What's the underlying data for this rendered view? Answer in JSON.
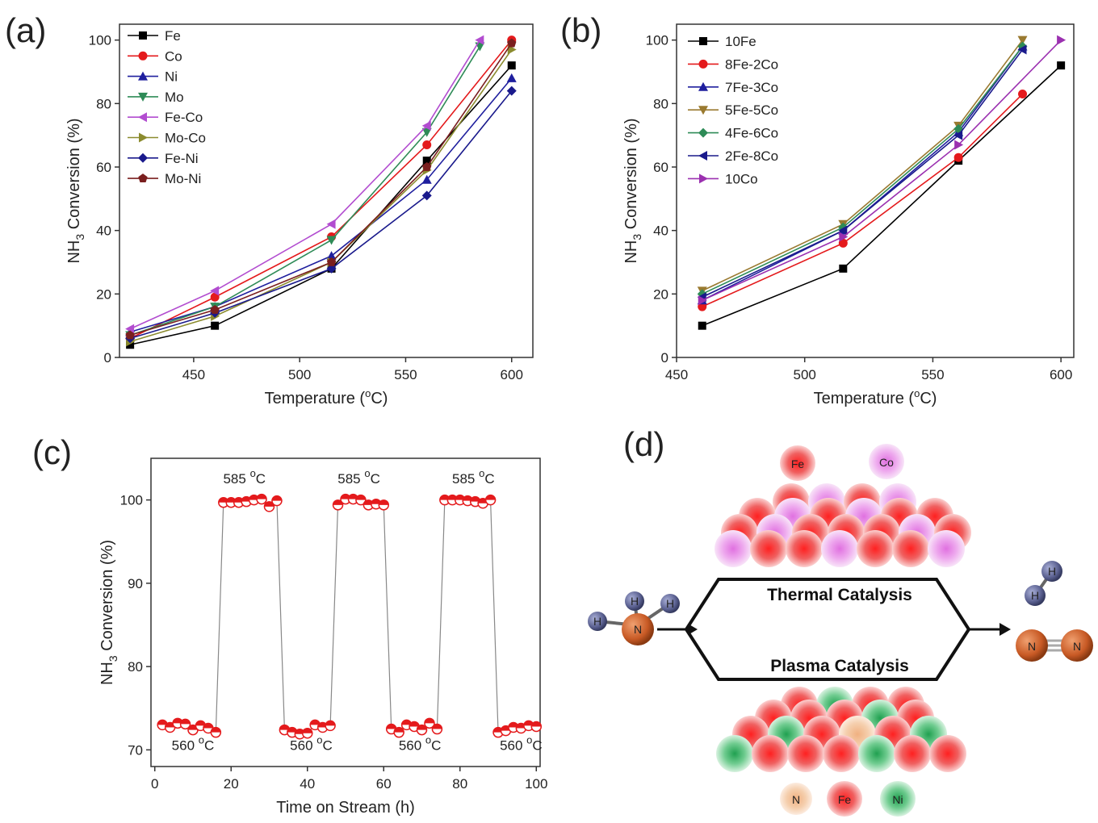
{
  "panel_labels": {
    "a": "(a)",
    "b": "(b)",
    "c": "(c)",
    "d": "(d)"
  },
  "chart_data": [
    {
      "id": "a",
      "type": "line",
      "xlabel": "Temperature (°C)",
      "ylabel": "NH3 Conversion (%)",
      "xlim": [
        415,
        610
      ],
      "ylim": [
        0,
        105
      ],
      "xticks": [
        450,
        500,
        550,
        600
      ],
      "yticks": [
        0,
        20,
        40,
        60,
        80,
        100
      ],
      "legend": "top-left",
      "x": [
        420,
        460,
        515,
        560,
        585,
        600
      ],
      "series": [
        {
          "name": "Fe",
          "color": "#000000",
          "marker": "square",
          "x": [
            420,
            460,
            515,
            560,
            600
          ],
          "values": [
            4,
            10,
            28,
            62,
            92
          ]
        },
        {
          "name": "Co",
          "color": "#e41a1c",
          "marker": "circle",
          "x": [
            420,
            460,
            515,
            560,
            600
          ],
          "values": [
            6,
            19,
            38,
            67,
            100
          ]
        },
        {
          "name": "Ni",
          "color": "#1f1f9e",
          "marker": "triangle",
          "x": [
            420,
            460,
            515,
            560,
            600
          ],
          "values": [
            8,
            16,
            32,
            56,
            88
          ]
        },
        {
          "name": "Mo",
          "color": "#2e8b57",
          "marker": "tri-down",
          "x": [
            420,
            460,
            515,
            560,
            585
          ],
          "values": [
            7,
            16,
            37,
            71,
            98
          ]
        },
        {
          "name": "Fe-Co",
          "color": "#b24cd0",
          "marker": "tri-left",
          "x": [
            420,
            460,
            515,
            560,
            585
          ],
          "values": [
            9,
            21,
            42,
            73,
            100
          ]
        },
        {
          "name": "Mo-Co",
          "color": "#8b8b2e",
          "marker": "tri-right",
          "x": [
            420,
            460,
            515,
            560,
            600
          ],
          "values": [
            5,
            13,
            30,
            59,
            97
          ]
        },
        {
          "name": "Fe-Ni",
          "color": "#1a1a8c",
          "marker": "diamond",
          "x": [
            420,
            460,
            515,
            560,
            600
          ],
          "values": [
            6,
            14,
            28,
            51,
            84
          ]
        },
        {
          "name": "Mo-Ni",
          "color": "#7a1f1f",
          "marker": "pentagon",
          "x": [
            420,
            460,
            515,
            560,
            600
          ],
          "values": [
            7,
            15,
            30,
            60,
            99
          ]
        }
      ]
    },
    {
      "id": "b",
      "type": "line",
      "xlabel": "Temperature (°C)",
      "ylabel": "NH3 Conversion (%)",
      "xlim": [
        450,
        605
      ],
      "ylim": [
        0,
        105
      ],
      "xticks": [
        450,
        500,
        550,
        600
      ],
      "yticks": [
        0,
        20,
        40,
        60,
        80,
        100
      ],
      "legend": "top-left",
      "series": [
        {
          "name": "10Fe",
          "color": "#000000",
          "marker": "square",
          "x": [
            460,
            515,
            560,
            600
          ],
          "values": [
            10,
            28,
            62,
            92
          ]
        },
        {
          "name": "8Fe-2Co",
          "color": "#e41a1c",
          "marker": "circle",
          "x": [
            460,
            515,
            560,
            585
          ],
          "values": [
            16,
            36,
            63,
            83
          ]
        },
        {
          "name": "7Fe-3Co",
          "color": "#1f1f9e",
          "marker": "triangle",
          "x": [
            460,
            515,
            560,
            585
          ],
          "values": [
            18,
            40,
            71,
            98
          ]
        },
        {
          "name": "5Fe-5Co",
          "color": "#9a7a30",
          "marker": "tri-down",
          "x": [
            460,
            515,
            560,
            585
          ],
          "values": [
            21,
            42,
            73,
            100
          ]
        },
        {
          "name": "4Fe-6Co",
          "color": "#2e8b57",
          "marker": "diamond",
          "x": [
            460,
            515,
            560,
            585
          ],
          "values": [
            20,
            41,
            72,
            98
          ]
        },
        {
          "name": "2Fe-8Co",
          "color": "#1a1a8c",
          "marker": "tri-left",
          "x": [
            460,
            515,
            560,
            585
          ],
          "values": [
            19,
            40,
            70,
            97
          ]
        },
        {
          "name": "10Co",
          "color": "#9b30b0",
          "marker": "tri-right",
          "x": [
            460,
            515,
            560,
            600
          ],
          "values": [
            18,
            38,
            67,
            100
          ]
        }
      ]
    },
    {
      "id": "c",
      "type": "line",
      "xlabel": "Time on Stream (h)",
      "ylabel": "NH3 Conversion (%)",
      "xlim": [
        -1,
        101
      ],
      "ylim": [
        68,
        105
      ],
      "xticks": [
        0,
        20,
        40,
        60,
        80,
        100
      ],
      "yticks": [
        70,
        80,
        90,
        100
      ],
      "series": [
        {
          "name": "",
          "color": "#e41a1c",
          "x": [
            2,
            4,
            6,
            8,
            10,
            12,
            14,
            16,
            18,
            20,
            22,
            24,
            26,
            28,
            30,
            32,
            34,
            36,
            38,
            40,
            42,
            44,
            46,
            48,
            50,
            52,
            54,
            56,
            58,
            60,
            62,
            64,
            66,
            68,
            70,
            72,
            74,
            76,
            78,
            80,
            82,
            84,
            86,
            88,
            90,
            92,
            94,
            96,
            98,
            100
          ],
          "values": [
            73,
            72.7,
            73.2,
            73.1,
            72.4,
            72.9,
            72.6,
            72.1,
            99.7,
            99.7,
            99.7,
            99.8,
            100,
            100.1,
            99.2,
            99.9,
            72.4,
            72.1,
            71.9,
            72,
            73,
            72.7,
            72.9,
            99.4,
            100.1,
            100.1,
            100,
            99.4,
            99.5,
            99.4,
            72.5,
            72.1,
            73,
            72.8,
            72.4,
            73.2,
            72.5,
            100,
            100,
            100,
            99.9,
            99.8,
            99.6,
            100,
            72.1,
            72.3,
            72.7,
            72.6,
            72.9,
            72.8
          ]
        }
      ],
      "annotations": [
        {
          "text": "585 °C",
          "x": 23.5,
          "y": 102
        },
        {
          "text": "585 °C",
          "x": 53.5,
          "y": 102
        },
        {
          "text": "585 °C",
          "x": 83.5,
          "y": 102
        },
        {
          "text": "560 °C",
          "x": 10,
          "y": 70
        },
        {
          "text": "560 °C",
          "x": 41,
          "y": 70
        },
        {
          "text": "560 °C",
          "x": 69.5,
          "y": 70
        },
        {
          "text": "560 °C",
          "x": 96,
          "y": 70
        }
      ]
    }
  ],
  "diagram": {
    "thermal_label": "Thermal Catalysis",
    "plasma_label": "Plasma Catalysis",
    "top_legend": [
      {
        "text": "Fe",
        "color": "#e41a1c"
      },
      {
        "text": "Co",
        "color": "#cc66cc"
      }
    ],
    "bottom_legend": [
      {
        "text": "N",
        "color": "#e8a070"
      },
      {
        "text": "Fe",
        "color": "#e41a1c"
      },
      {
        "text": "Ni",
        "color": "#2eb060"
      }
    ],
    "reactant_atoms": [
      {
        "text": "H"
      },
      {
        "text": "H"
      },
      {
        "text": "H"
      },
      {
        "text": "N"
      }
    ],
    "product_atoms": [
      {
        "text": "H"
      },
      {
        "text": "H"
      },
      {
        "text": "N"
      },
      {
        "text": "N"
      }
    ]
  }
}
